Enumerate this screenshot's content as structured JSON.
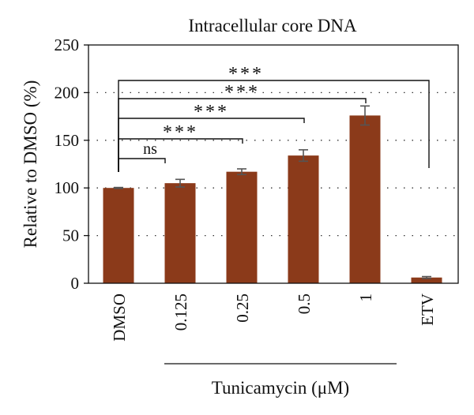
{
  "chart_data": {
    "type": "bar",
    "title": "Intracellular core DNA",
    "ylabel": "Relative to DMSO (%)",
    "xlabel": "Tunicamycin (μM)",
    "categories": [
      "DMSO",
      "0.125",
      "0.25",
      "0.5",
      "1",
      "ETV"
    ],
    "values": [
      100,
      105,
      117,
      134,
      176,
      6
    ],
    "errors": [
      0.5,
      4,
      3,
      6,
      10,
      1
    ],
    "ylim": [
      0,
      250
    ],
    "yticks": [
      0,
      50,
      100,
      150,
      200,
      250
    ],
    "ytick_labels": [
      "0",
      "50",
      "100",
      "150",
      "200",
      "250"
    ],
    "grid": "dotted-horizontal",
    "bar_color": "#8B3A1A",
    "error_color": "#555555",
    "xlabel_group": {
      "from_category": 1,
      "to_category": 4
    },
    "comparisons": [
      {
        "from": 0,
        "to": 1,
        "label": "ns"
      },
      {
        "from": 0,
        "to": 2,
        "label": "***"
      },
      {
        "from": 0,
        "to": 3,
        "label": "***"
      },
      {
        "from": 0,
        "to": 4,
        "label": "***"
      },
      {
        "from": 0,
        "to": 5,
        "label": "***"
      }
    ]
  }
}
